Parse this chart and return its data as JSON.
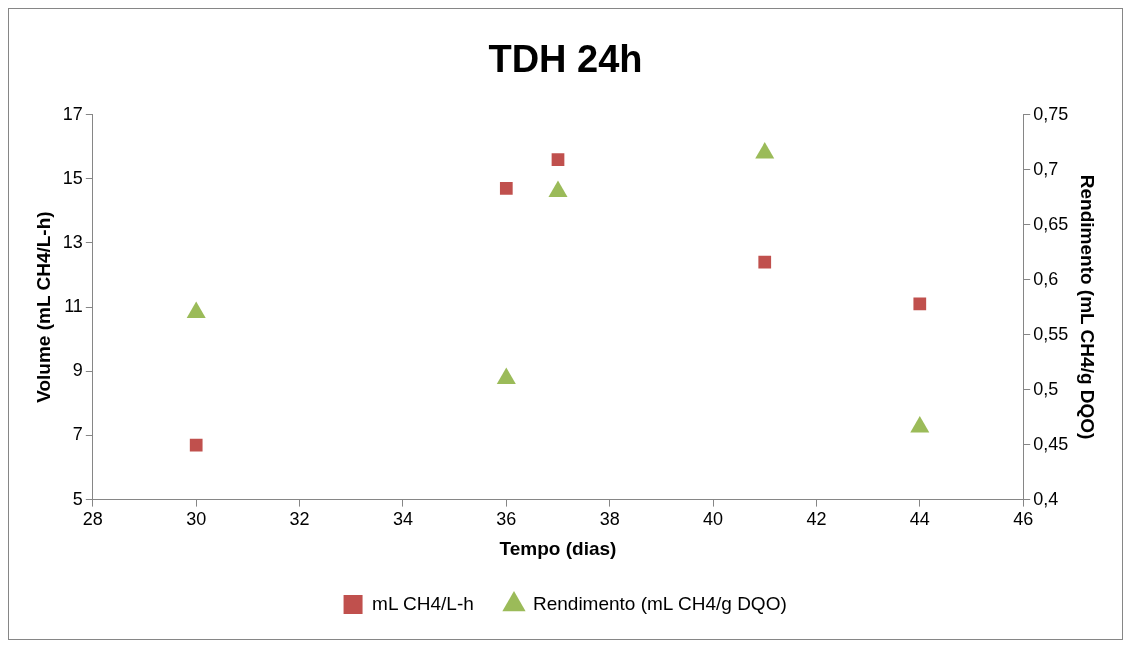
{
  "chart_data": {
    "type": "scatter",
    "title": "TDH 24h",
    "xlabel": "Tempo (dias)",
    "ylabel": "Volume (mL CH4/L-h)",
    "y2label": "Rendimento (mL CH4/g DQO)",
    "x": [
      30,
      36,
      37,
      41,
      44
    ],
    "series": [
      {
        "name": "mL CH4/L-h",
        "color": "#c0504d",
        "marker": "square",
        "values": [
          6.7,
          14.7,
          15.6,
          12.4,
          11.1
        ]
      },
      {
        "name": "Rendimento (mL CH4/g DQO)",
        "color": "#9bbb59",
        "marker": "triangle",
        "axis": "y2",
        "values": [
          0.57,
          0.51,
          0.68,
          0.715,
          0.466
        ]
      }
    ],
    "xlim": [
      28,
      46
    ],
    "xticks": [
      28,
      30,
      32,
      34,
      36,
      38,
      40,
      42,
      44,
      46
    ],
    "ylim": [
      5,
      17
    ],
    "yticks": [
      5,
      7,
      9,
      11,
      13,
      15,
      17
    ],
    "y2lim": [
      0.4,
      0.75
    ],
    "y2ticks": [
      {
        "value": 0.4,
        "label": "0,4"
      },
      {
        "value": 0.45,
        "label": "0,45"
      },
      {
        "value": 0.5,
        "label": "0,5"
      },
      {
        "value": 0.55,
        "label": "0,55"
      },
      {
        "value": 0.6,
        "label": "0,6"
      },
      {
        "value": 0.65,
        "label": "0,65"
      },
      {
        "value": 0.7,
        "label": "0,7"
      },
      {
        "value": 0.75,
        "label": "0,75"
      }
    ],
    "legend": "bottom"
  }
}
